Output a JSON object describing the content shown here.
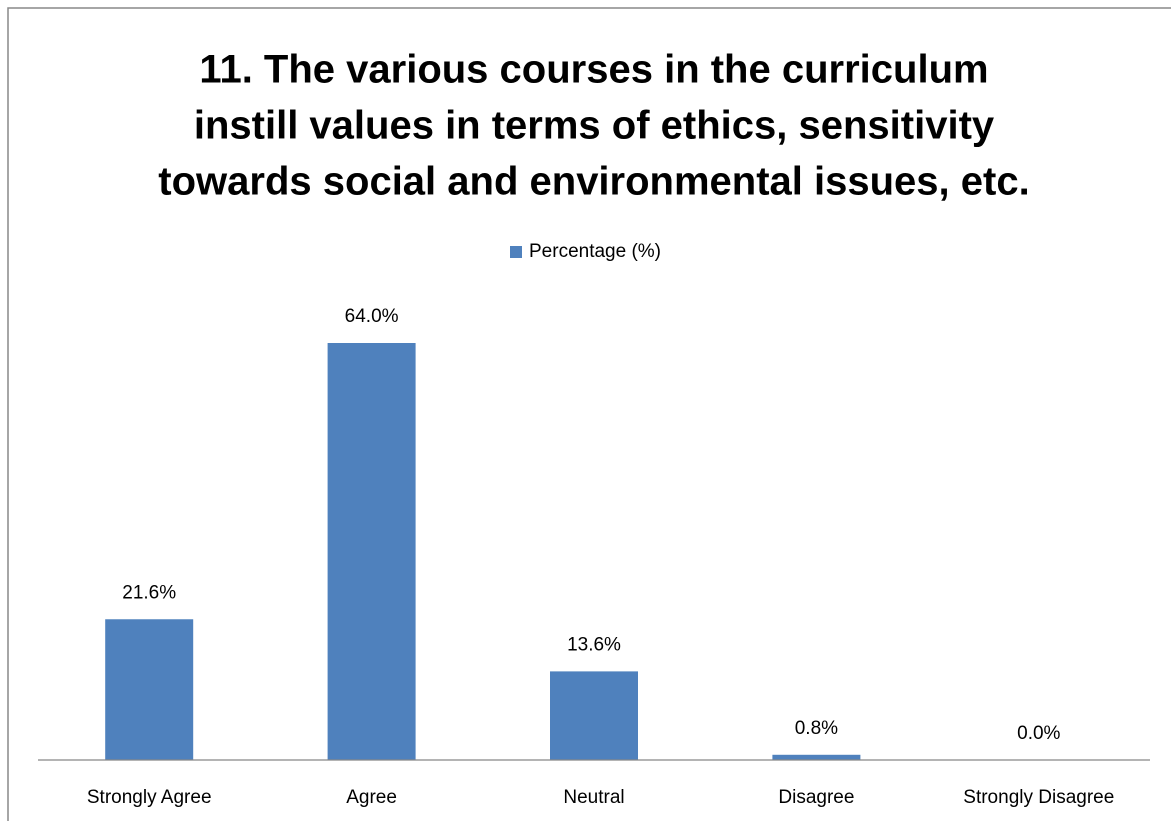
{
  "chart_data": {
    "type": "bar",
    "title": [
      "11. The various courses in the curriculum",
      "instill values in terms of ethics, sensitivity",
      "towards social and environmental issues, etc."
    ],
    "categories": [
      "Strongly Agree",
      "Agree",
      "Neutral",
      "Disagree",
      "Strongly Disagree"
    ],
    "series": [
      {
        "name": "Percentage (%)",
        "color": "#4f81bd",
        "values": [
          21.6,
          64.0,
          13.6,
          0.8,
          0.0
        ],
        "value_labels": [
          "21.6%",
          "64.0%",
          "13.6%",
          "0.8%",
          "0.0%"
        ]
      }
    ],
    "legend": "top"
  }
}
